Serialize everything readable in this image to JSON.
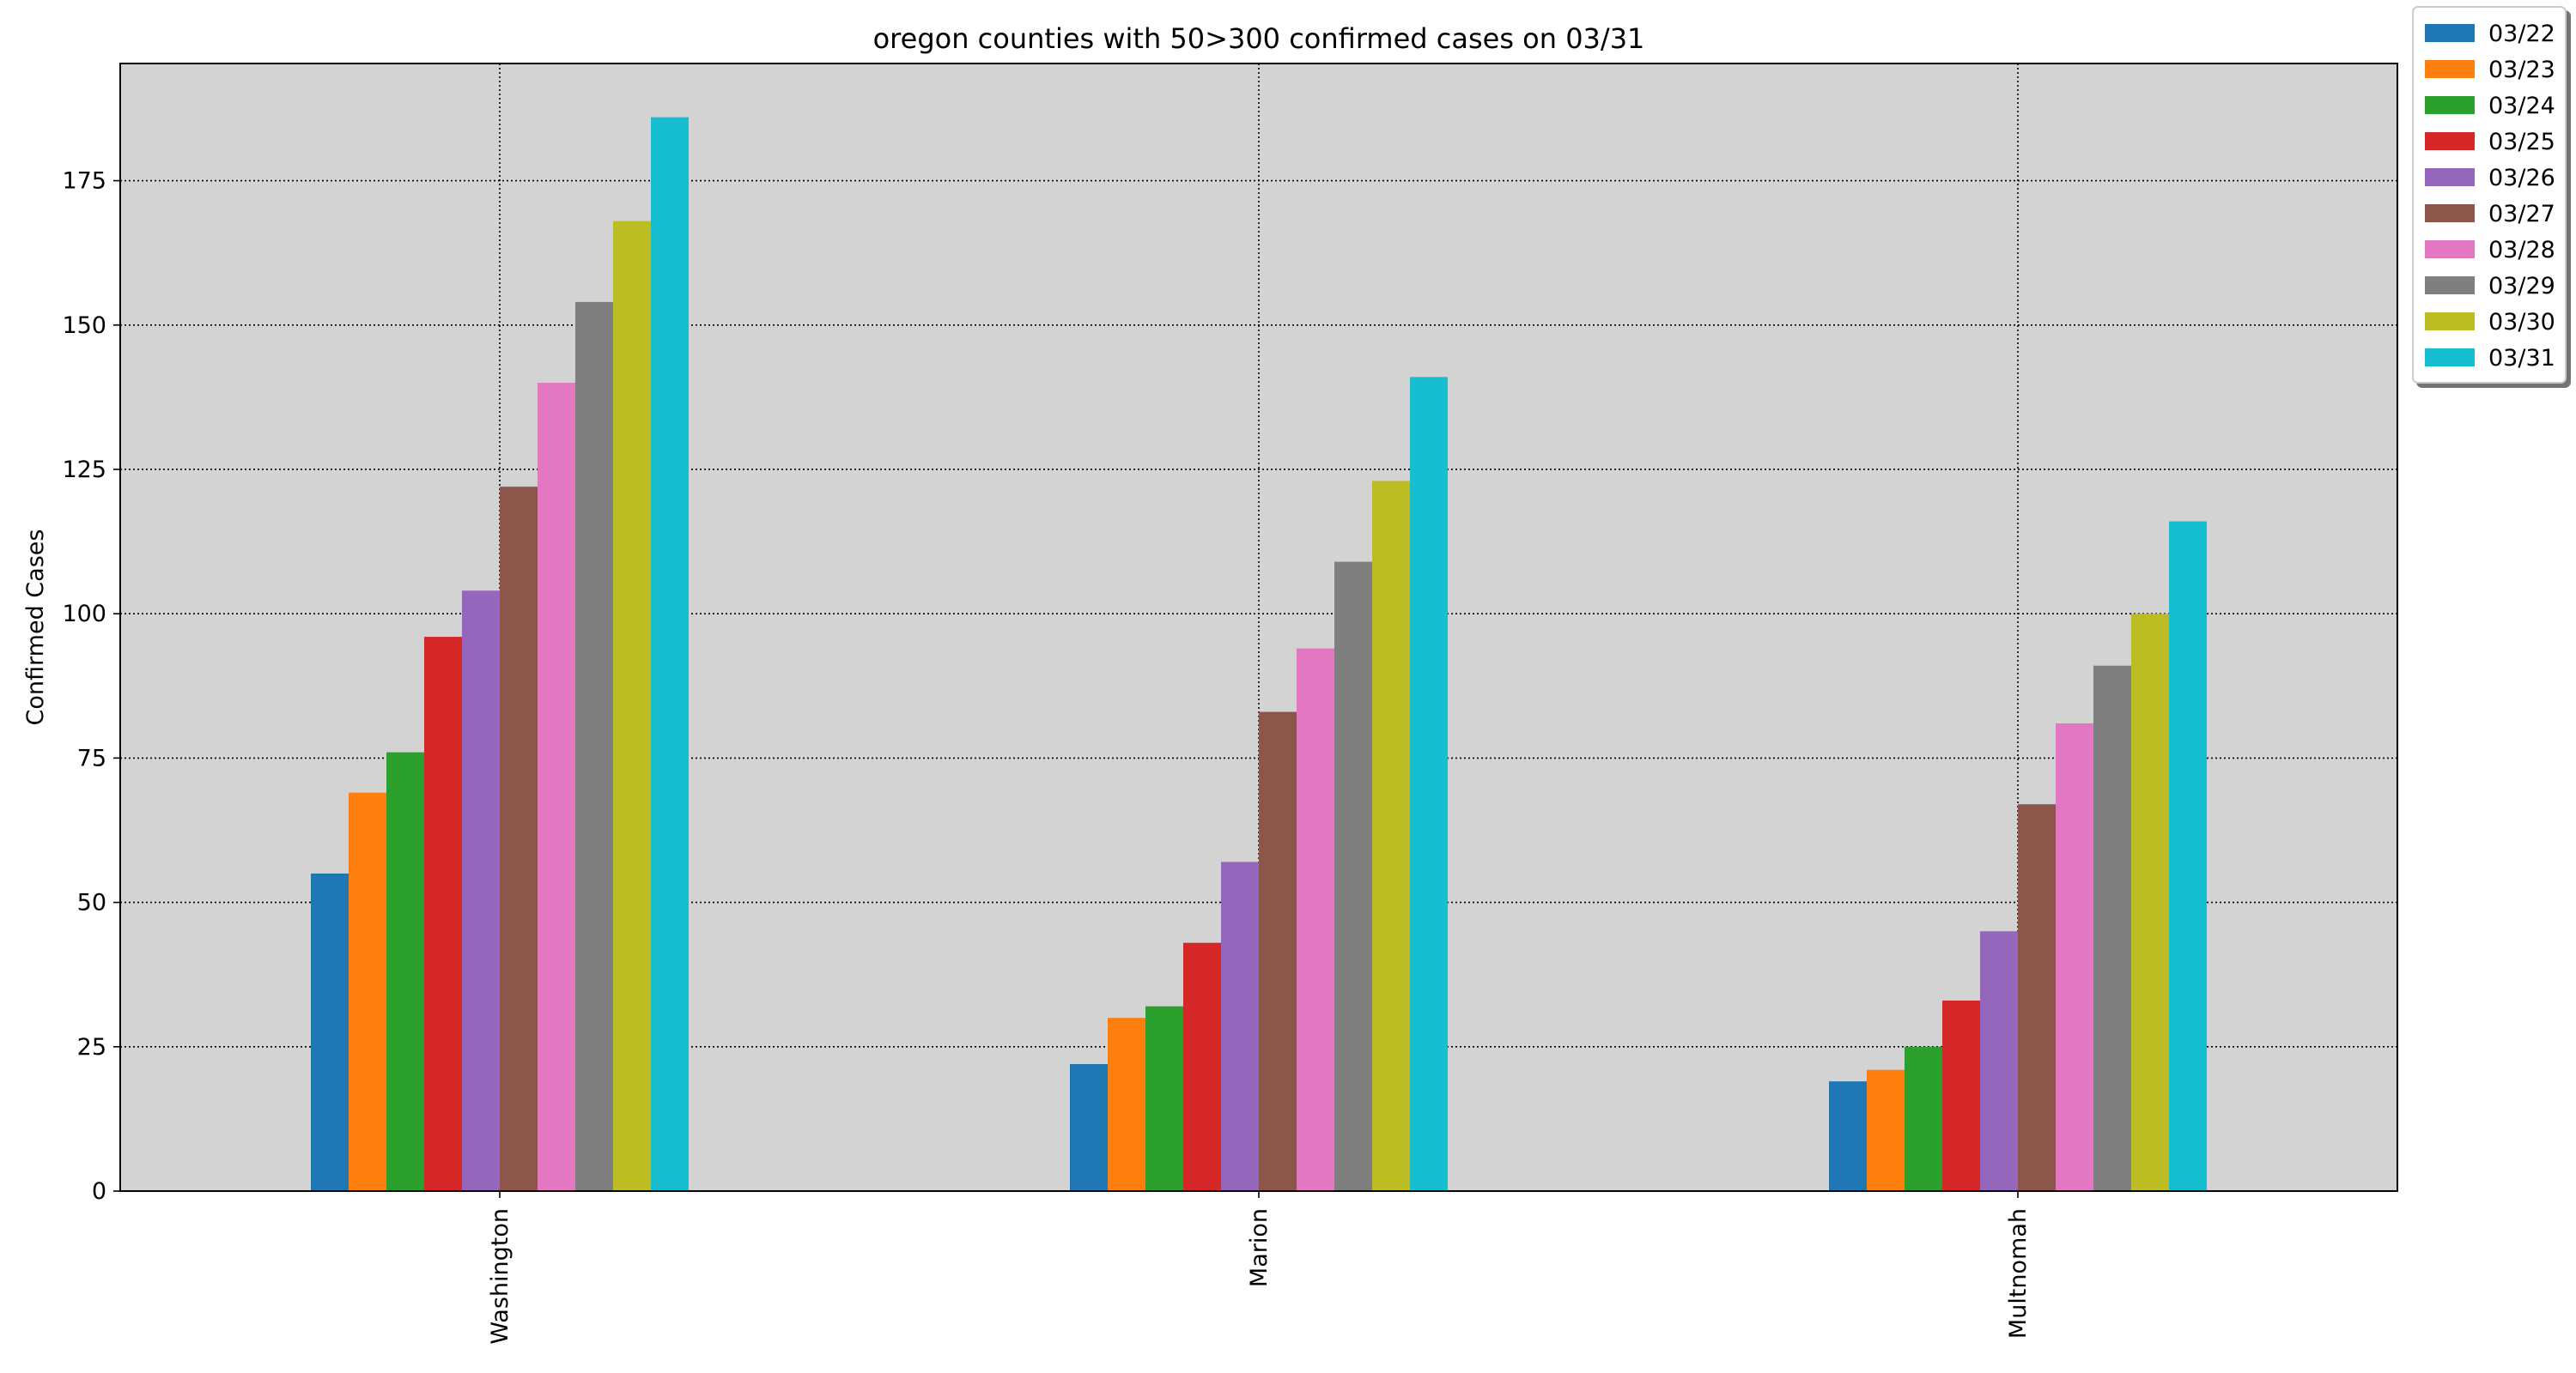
{
  "chart_data": {
    "type": "bar",
    "title": "oregon counties with 50>300 confirmed cases on 03/31",
    "xlabel": "",
    "ylabel": "Confirmed Cases",
    "categories": [
      "Washington",
      "Marion",
      "Multnomah"
    ],
    "series": [
      {
        "name": "03/22",
        "color": "#1f77b4",
        "values": [
          55,
          22,
          19
        ]
      },
      {
        "name": "03/23",
        "color": "#ff7f0e",
        "values": [
          69,
          30,
          21
        ]
      },
      {
        "name": "03/24",
        "color": "#2ca02c",
        "values": [
          76,
          32,
          25
        ]
      },
      {
        "name": "03/25",
        "color": "#d62728",
        "values": [
          96,
          43,
          33
        ]
      },
      {
        "name": "03/26",
        "color": "#9467bd",
        "values": [
          104,
          57,
          45
        ]
      },
      {
        "name": "03/27",
        "color": "#8c564b",
        "values": [
          122,
          83,
          67
        ]
      },
      {
        "name": "03/28",
        "color": "#e377c2",
        "values": [
          140,
          94,
          81
        ]
      },
      {
        "name": "03/29",
        "color": "#7f7f7f",
        "values": [
          154,
          109,
          91
        ]
      },
      {
        "name": "03/30",
        "color": "#bcbd22",
        "values": [
          168,
          123,
          100
        ]
      },
      {
        "name": "03/31",
        "color": "#17becf",
        "values": [
          186,
          141,
          116
        ]
      }
    ],
    "ylim": [
      0,
      195.3
    ],
    "yticks": [
      0,
      25,
      50,
      75,
      100,
      125,
      150,
      175
    ],
    "grid": true,
    "legend_position": "outside top-right",
    "background_color": "#d3d3d3"
  }
}
